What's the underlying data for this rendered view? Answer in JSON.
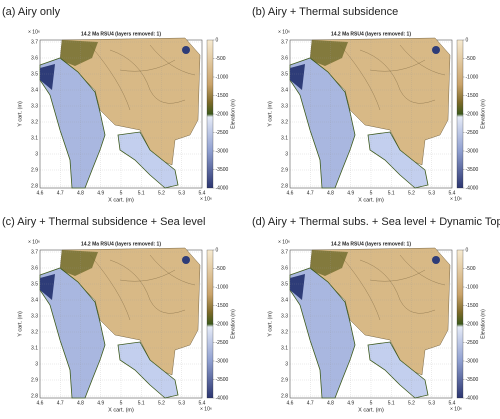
{
  "panels": [
    {
      "label": "(a) Airy only",
      "title": "14.2 Ma   RSU4    (layers removed: 1)"
    },
    {
      "label": "(b) Airy + Thermal subsidence",
      "title": "14.2 Ma   RSU4    (layers removed: 1)"
    },
    {
      "label": "(c) Airy + Thermal subsidence + Sea level",
      "title": "14.2 Ma   RSU4    (layers removed: 1)"
    },
    {
      "label": "(d) Airy + Thermal subs. + Sea level + Dynamic Topo.",
      "title": "14.2 Ma   RSU4    (layers removed: 1)"
    }
  ],
  "axes": {
    "xlabel": "X cart. (m)",
    "ylabel": "Y cart. (m)",
    "xticks": [
      4.6,
      4.7,
      4.8,
      4.9,
      5,
      5.1,
      5.2,
      5.3,
      5.4
    ],
    "yticks": [
      2.8,
      2.9,
      3,
      3.1,
      3.2,
      3.3,
      3.4,
      3.5,
      3.6,
      3.7
    ],
    "x_exponent": "× 10⁶",
    "y_exponent": "× 10⁶",
    "colorbar_label": "Elevation (m)",
    "colorbar_ticks": [
      0,
      -500,
      -1000,
      -1500,
      -2000,
      -2500,
      -3000,
      -3500,
      -4000
    ]
  }
}
